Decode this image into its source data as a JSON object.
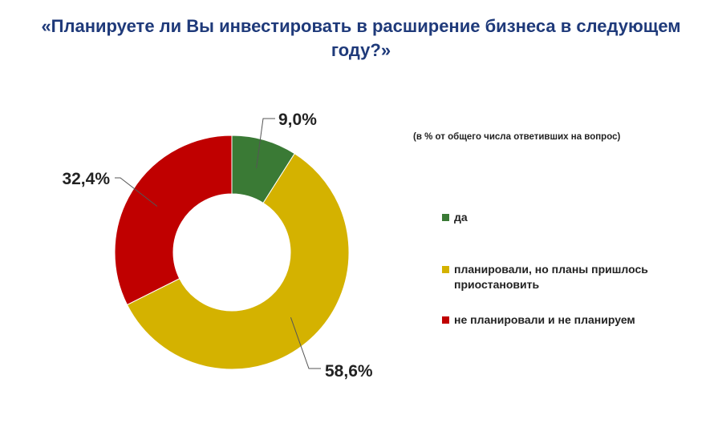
{
  "title": "«Планируете ли Вы инвестировать в расширение бизнеса в следующем году?»",
  "subtitle": "(в % от общего числа ответивших на вопрос)",
  "chart_data": {
    "type": "pie",
    "donut": true,
    "title": "«Планируете ли Вы инвестировать в расширение бизнеса в следующем году?»",
    "subtitle": "(в % от общего числа ответивших на вопрос)",
    "legend_position": "right",
    "series": [
      {
        "name": "да",
        "value": 9.0,
        "label": "9,0%",
        "color": "#3a7a35"
      },
      {
        "name": "планировали, но планы пришлось приостановить",
        "value": 58.6,
        "label": "58,6%",
        "color": "#d4b200"
      },
      {
        "name": "не планировали и не планируем",
        "value": 32.4,
        "label": "32,4%",
        "color": "#c00000"
      }
    ]
  }
}
